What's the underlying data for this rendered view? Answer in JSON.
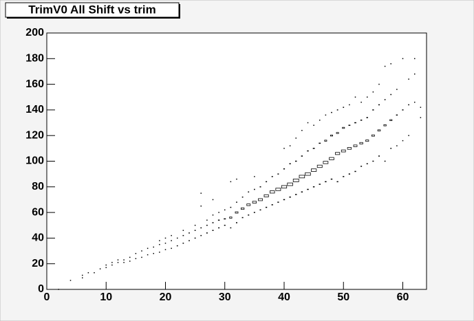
{
  "chart_data": {
    "type": "box2d",
    "title": "TrimV0 All Shift vs trim",
    "xlim": [
      0,
      64
    ],
    "xticks": [
      0,
      10,
      20,
      30,
      40,
      50,
      60
    ],
    "ylim": [
      0,
      200
    ],
    "yticks": [
      0,
      20,
      40,
      60,
      80,
      100,
      120,
      140,
      160,
      180,
      200
    ],
    "color": "#000000",
    "points": [
      [
        2,
        0,
        1
      ],
      [
        4,
        7,
        1
      ],
      [
        6,
        9,
        1
      ],
      [
        6,
        11,
        1
      ],
      [
        7,
        13,
        1
      ],
      [
        8,
        13,
        1
      ],
      [
        9,
        16,
        1
      ],
      [
        10,
        17,
        1
      ],
      [
        10,
        19,
        1
      ],
      [
        11,
        19,
        1
      ],
      [
        11,
        21,
        1
      ],
      [
        12,
        21,
        1
      ],
      [
        12,
        23,
        1
      ],
      [
        13,
        21,
        1
      ],
      [
        13,
        23,
        1
      ],
      [
        14,
        22,
        1
      ],
      [
        14,
        25,
        1
      ],
      [
        15,
        24,
        2
      ],
      [
        15,
        28,
        1
      ],
      [
        16,
        25,
        2
      ],
      [
        16,
        30,
        1
      ],
      [
        17,
        27,
        2
      ],
      [
        17,
        32,
        1
      ],
      [
        18,
        28,
        2
      ],
      [
        18,
        33,
        1
      ],
      [
        19,
        29,
        2
      ],
      [
        19,
        35,
        2
      ],
      [
        19,
        38,
        1
      ],
      [
        20,
        31,
        2
      ],
      [
        20,
        36,
        2
      ],
      [
        20,
        40,
        1
      ],
      [
        21,
        32,
        2
      ],
      [
        21,
        38,
        2
      ],
      [
        21,
        42,
        1
      ],
      [
        22,
        34,
        3
      ],
      [
        22,
        40,
        2
      ],
      [
        23,
        36,
        3
      ],
      [
        23,
        42,
        3
      ],
      [
        23,
        46,
        1
      ],
      [
        24,
        38,
        3
      ],
      [
        24,
        44,
        3
      ],
      [
        25,
        40,
        3
      ],
      [
        25,
        46,
        3
      ],
      [
        25,
        50,
        1
      ],
      [
        26,
        42,
        3
      ],
      [
        26,
        48,
        3
      ],
      [
        26,
        65,
        1
      ],
      [
        26,
        75,
        1
      ],
      [
        27,
        44,
        4
      ],
      [
        27,
        50,
        3
      ],
      [
        27,
        54,
        1
      ],
      [
        28,
        46,
        4
      ],
      [
        28,
        52,
        4
      ],
      [
        28,
        58,
        1
      ],
      [
        28,
        70,
        1
      ],
      [
        29,
        48,
        4
      ],
      [
        29,
        54,
        6
      ],
      [
        29,
        60,
        1
      ],
      [
        30,
        50,
        4
      ],
      [
        30,
        55,
        9
      ],
      [
        30,
        62,
        2
      ],
      [
        31,
        48,
        3
      ],
      [
        31,
        56,
        12
      ],
      [
        31,
        64,
        3
      ],
      [
        31,
        84,
        1
      ],
      [
        32,
        52,
        4
      ],
      [
        32,
        60,
        16
      ],
      [
        32,
        68,
        3
      ],
      [
        32,
        86,
        1
      ],
      [
        33,
        56,
        4
      ],
      [
        33,
        63,
        20
      ],
      [
        33,
        72,
        3
      ],
      [
        34,
        58,
        4
      ],
      [
        34,
        66,
        25
      ],
      [
        34,
        76,
        3
      ],
      [
        35,
        60,
        4
      ],
      [
        35,
        68,
        30
      ],
      [
        35,
        78,
        3
      ],
      [
        35,
        88,
        1
      ],
      [
        36,
        62,
        4
      ],
      [
        36,
        70,
        36
      ],
      [
        36,
        80,
        4
      ],
      [
        37,
        64,
        5
      ],
      [
        37,
        73,
        40
      ],
      [
        37,
        84,
        4
      ],
      [
        38,
        66,
        5
      ],
      [
        38,
        76,
        45
      ],
      [
        38,
        88,
        4
      ],
      [
        39,
        68,
        5
      ],
      [
        39,
        78,
        50
      ],
      [
        39,
        90,
        4
      ],
      [
        40,
        70,
        6
      ],
      [
        40,
        80,
        55
      ],
      [
        40,
        94,
        5
      ],
      [
        40,
        110,
        1
      ],
      [
        41,
        72,
        6
      ],
      [
        41,
        82,
        60
      ],
      [
        41,
        98,
        5
      ],
      [
        41,
        112,
        1
      ],
      [
        42,
        74,
        6
      ],
      [
        42,
        85,
        64
      ],
      [
        42,
        100,
        6
      ],
      [
        42,
        118,
        1
      ],
      [
        43,
        76,
        6
      ],
      [
        43,
        88,
        60
      ],
      [
        43,
        104,
        6
      ],
      [
        43,
        124,
        1
      ],
      [
        44,
        78,
        6
      ],
      [
        44,
        90,
        58
      ],
      [
        44,
        108,
        6
      ],
      [
        44,
        130,
        1
      ],
      [
        45,
        80,
        6
      ],
      [
        45,
        93,
        55
      ],
      [
        45,
        110,
        8
      ],
      [
        45,
        128,
        2
      ],
      [
        46,
        82,
        6
      ],
      [
        46,
        96,
        50
      ],
      [
        46,
        114,
        8
      ],
      [
        46,
        132,
        2
      ],
      [
        47,
        84,
        6
      ],
      [
        47,
        99,
        48
      ],
      [
        47,
        116,
        10
      ],
      [
        47,
        136,
        2
      ],
      [
        48,
        86,
        6
      ],
      [
        48,
        102,
        45
      ],
      [
        48,
        120,
        10
      ],
      [
        48,
        138,
        3
      ],
      [
        49,
        84,
        5
      ],
      [
        49,
        106,
        40
      ],
      [
        49,
        122,
        10
      ],
      [
        49,
        140,
        3
      ],
      [
        50,
        88,
        5
      ],
      [
        50,
        108,
        35
      ],
      [
        50,
        126,
        10
      ],
      [
        50,
        142,
        3
      ],
      [
        51,
        90,
        5
      ],
      [
        51,
        110,
        30
      ],
      [
        51,
        128,
        8
      ],
      [
        51,
        144,
        2
      ],
      [
        52,
        92,
        5
      ],
      [
        52,
        112,
        25
      ],
      [
        52,
        130,
        8
      ],
      [
        52,
        150,
        1
      ],
      [
        53,
        96,
        4
      ],
      [
        53,
        114,
        20
      ],
      [
        53,
        132,
        6
      ],
      [
        53,
        146,
        2
      ],
      [
        54,
        98,
        4
      ],
      [
        54,
        116,
        18
      ],
      [
        54,
        134,
        6
      ],
      [
        54,
        150,
        2
      ],
      [
        55,
        100,
        4
      ],
      [
        55,
        120,
        16
      ],
      [
        55,
        140,
        5
      ],
      [
        55,
        154,
        1
      ],
      [
        56,
        104,
        4
      ],
      [
        56,
        124,
        14
      ],
      [
        56,
        144,
        4
      ],
      [
        56,
        160,
        1
      ],
      [
        57,
        100,
        3
      ],
      [
        57,
        128,
        12
      ],
      [
        57,
        148,
        3
      ],
      [
        57,
        174,
        1
      ],
      [
        58,
        110,
        3
      ],
      [
        58,
        132,
        10
      ],
      [
        58,
        152,
        3
      ],
      [
        58,
        176,
        1
      ],
      [
        59,
        112,
        2
      ],
      [
        59,
        136,
        6
      ],
      [
        59,
        156,
        2
      ],
      [
        60,
        116,
        2
      ],
      [
        60,
        140,
        4
      ],
      [
        60,
        180,
        1
      ],
      [
        61,
        120,
        2
      ],
      [
        61,
        144,
        3
      ],
      [
        61,
        164,
        1
      ],
      [
        62,
        146,
        2
      ],
      [
        62,
        168,
        1
      ],
      [
        62,
        180,
        1
      ],
      [
        63,
        134,
        1
      ],
      [
        63,
        142,
        1
      ]
    ]
  }
}
